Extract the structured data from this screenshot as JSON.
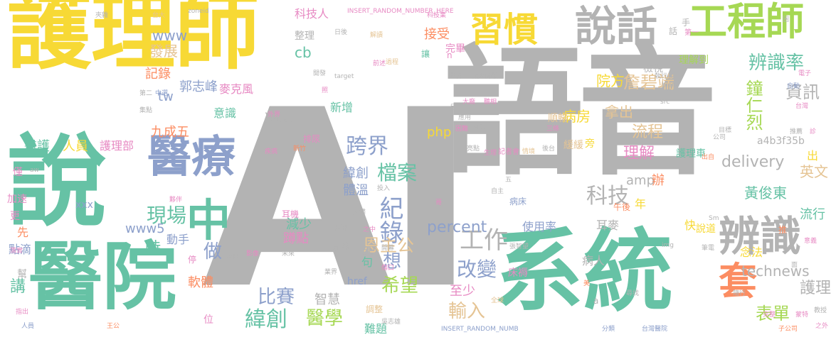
{
  "colors": {
    "yellow": "#f7d935",
    "gray": "#b3b3b3",
    "green": "#66c2a5",
    "blue": "#8da0cb",
    "orange": "#fc8d62",
    "pink": "#e78ac3",
    "lime": "#a6d854",
    "tan": "#e5c494"
  },
  "words": [
    {
      "text": "護理師",
      "color": "yellow"
    },
    {
      "text": "語音",
      "color": "gray"
    },
    {
      "text": "AI",
      "color": "gray"
    },
    {
      "text": "說",
      "color": "green"
    },
    {
      "text": "醫院",
      "color": "green"
    },
    {
      "text": "系統",
      "color": "green"
    },
    {
      "text": "醫療",
      "color": "blue"
    },
    {
      "text": "說話",
      "color": "gray"
    },
    {
      "text": "習慣",
      "color": "yellow"
    },
    {
      "text": "工程師",
      "color": "lime"
    },
    {
      "text": "辨識",
      "color": "gray"
    },
    {
      "text": "中",
      "color": "green"
    },
    {
      "text": "套",
      "color": "orange"
    },
    {
      "text": "辨識率",
      "color": "green"
    },
    {
      "text": "詹碧端",
      "color": "tan"
    },
    {
      "text": "鐘仁烈",
      "color": "lime"
    },
    {
      "text": "跨界",
      "color": "blue"
    },
    {
      "text": "科技",
      "color": "gray"
    },
    {
      "text": "紀錄",
      "color": "blue"
    },
    {
      "text": "檔案",
      "color": "green"
    },
    {
      "text": "工作",
      "color": "gray"
    },
    {
      "text": "改變",
      "color": "blue"
    },
    {
      "text": "緯創",
      "color": "green"
    },
    {
      "text": "醫學",
      "color": "lime"
    },
    {
      "text": "比賽",
      "color": "blue"
    },
    {
      "text": "希望",
      "color": "lime"
    },
    {
      "text": "輸入",
      "color": "tan"
    },
    {
      "text": "護理",
      "color": "gray"
    },
    {
      "text": "表單",
      "color": "lime"
    },
    {
      "text": "恩主公",
      "color": "tan"
    },
    {
      "text": "現場",
      "color": "green"
    },
    {
      "text": "做",
      "color": "blue"
    },
    {
      "text": "想",
      "color": "blue"
    },
    {
      "text": "percent",
      "color": "blue"
    },
    {
      "text": "使用率",
      "color": "blue"
    },
    {
      "text": "delivery",
      "color": "gray"
    },
    {
      "text": "technews",
      "color": "gray"
    },
    {
      "text": "資訊",
      "color": "gray"
    },
    {
      "text": "病患",
      "color": "gray"
    },
    {
      "text": "院方",
      "color": "yellow"
    },
    {
      "text": "流程",
      "color": "tan"
    },
    {
      "text": "理解",
      "color": "pink"
    },
    {
      "text": "拿出",
      "color": "tan"
    },
    {
      "text": "病房",
      "color": "yellow"
    },
    {
      "text": "順暢",
      "color": "tan"
    },
    {
      "text": "黃俊東",
      "color": "green"
    },
    {
      "text": "英文",
      "color": "tan"
    },
    {
      "text": "流行",
      "color": "green"
    },
    {
      "text": "記錄",
      "color": "orange"
    },
    {
      "text": "郭志峰",
      "color": "blue"
    },
    {
      "text": "麥克風",
      "color": "pink"
    },
    {
      "text": "發展",
      "color": "tan"
    },
    {
      "text": "www",
      "color": "blue"
    },
    {
      "text": "cb",
      "color": "green"
    },
    {
      "text": "tw",
      "color": "blue"
    },
    {
      "text": "九成五",
      "color": "orange"
    },
    {
      "text": "醫護",
      "color": "green"
    },
    {
      "text": "人員",
      "color": "yellow"
    },
    {
      "text": "護理部",
      "color": "pink"
    },
    {
      "text": "科技人",
      "color": "pink"
    },
    {
      "text": "整理",
      "color": "gray"
    },
    {
      "text": "接受",
      "color": "orange"
    },
    {
      "text": "完畢",
      "color": "pink"
    },
    {
      "text": "體溫",
      "color": "blue"
    },
    {
      "text": "緯創",
      "color": "blue"
    },
    {
      "text": "減少",
      "color": "green"
    },
    {
      "text": "蹲點",
      "color": "pink"
    },
    {
      "text": "時",
      "color": "green"
    },
    {
      "text": "動手",
      "color": "blue"
    },
    {
      "text": "軟體",
      "color": "orange"
    },
    {
      "text": "智慧",
      "color": "gray"
    },
    {
      "text": "至少",
      "color": "pink"
    },
    {
      "text": "加速",
      "color": "pink"
    },
    {
      "text": "講",
      "color": "green"
    },
    {
      "text": "點滴",
      "color": "blue"
    },
    {
      "text": "www5",
      "color": "blue"
    },
    {
      "text": "php",
      "color": "yellow"
    },
    {
      "text": "amp",
      "color": "gray"
    },
    {
      "text": "辦",
      "color": "orange"
    },
    {
      "text": "年",
      "color": "yellow"
    },
    {
      "text": "耳麥",
      "color": "gray"
    },
    {
      "text": "病人",
      "color": "gray"
    },
    {
      "text": "念法",
      "color": "yellow"
    },
    {
      "text": "新增",
      "color": "green"
    },
    {
      "text": "理解到",
      "color": "lime"
    },
    {
      "text": "檢視",
      "color": "gray"
    },
    {
      "text": "護理車",
      "color": "green"
    },
    {
      "text": "a4b3f35b",
      "color": "gray"
    },
    {
      "text": "出",
      "color": "yellow"
    },
    {
      "text": "快",
      "color": "yellow"
    },
    {
      "text": "說道",
      "color": "yellow"
    },
    {
      "text": "INSERT_RANDOM_NUMBER_HERE",
      "color": "pink"
    },
    {
      "text": "INSERT_RANDOM_NUMB",
      "color": "blue"
    },
    {
      "text": "zoneid",
      "color": "gray"
    },
    {
      "text": "台大",
      "color": "tan"
    },
    {
      "text": "夾雜",
      "color": "gray"
    },
    {
      "text": "日後",
      "color": "gray"
    },
    {
      "text": "解讀",
      "color": "tan"
    },
    {
      "text": "讓",
      "color": "green"
    },
    {
      "text": "手",
      "color": "gray"
    },
    {
      "text": "第一",
      "color": "pink"
    },
    {
      "text": "話",
      "color": "gray"
    },
    {
      "text": "第二",
      "color": "gray"
    },
    {
      "text": "意識",
      "color": "green"
    },
    {
      "text": "xxx",
      "color": "blue"
    },
    {
      "text": "先",
      "color": "orange"
    },
    {
      "text": "更",
      "color": "pink"
    },
    {
      "text": "僅",
      "color": "pink"
    },
    {
      "text": "幫",
      "color": "gray"
    },
    {
      "text": "位",
      "color": "pink"
    },
    {
      "text": "停",
      "color": "pink"
    },
    {
      "text": "href",
      "color": "blue"
    },
    {
      "text": "ck",
      "color": "gray"
    },
    {
      "text": "句",
      "color": "green"
    },
    {
      "text": "排尿",
      "color": "pink"
    },
    {
      "text": "調整",
      "color": "tan"
    },
    {
      "text": "難題",
      "color": "green"
    },
    {
      "text": "耳機",
      "color": "pink"
    },
    {
      "text": "尿袋",
      "color": "gray"
    },
    {
      "text": "午後",
      "color": "orange"
    },
    {
      "text": "床褥",
      "color": "pink"
    },
    {
      "text": "緩緩",
      "color": "tan"
    },
    {
      "text": "病床",
      "color": "blue"
    },
    {
      "text": "旁",
      "color": "yellow"
    },
    {
      "text": "台灣醫院",
      "color": "blue"
    },
    {
      "text": "子公司",
      "color": "orange"
    },
    {
      "text": "target",
      "color": "gray"
    },
    {
      "text": "_blank",
      "color": "gray"
    },
    {
      "text": "src",
      "color": "gray"
    },
    {
      "text": "img",
      "color": "gray"
    },
    {
      "text": "人員",
      "color": "blue"
    },
    {
      "text": "全球",
      "color": "tan"
    },
    {
      "text": "記者會",
      "color": "pink"
    },
    {
      "text": "情境",
      "color": "tan"
    },
    {
      "text": "後台",
      "color": "gray"
    },
    {
      "text": "三條",
      "color": "pink"
    },
    {
      "text": "護理師版",
      "color": "gray"
    },
    {
      "text": "前述",
      "color": "pink"
    },
    {
      "text": "開發",
      "color": "gray"
    },
    {
      "text": "世界",
      "color": "gray"
    },
    {
      "text": "國際",
      "color": "gray"
    },
    {
      "text": "亮點",
      "color": "gray"
    },
    {
      "text": "生理",
      "color": "pink"
    },
    {
      "text": "吳志雄",
      "color": "gray"
    },
    {
      "text": "推",
      "color": "orange"
    },
    {
      "text": "推薦",
      "color": "gray"
    },
    {
      "text": "診",
      "color": "pink"
    },
    {
      "text": "自動",
      "color": "blue"
    },
    {
      "text": "電子",
      "color": "pink"
    },
    {
      "text": "台灣",
      "color": "pink"
    },
    {
      "text": "公司",
      "color": "gray"
    },
    {
      "text": "執行長",
      "color": "gray"
    },
    {
      "text": "大廠",
      "color": "pink"
    },
    {
      "text": "聽相",
      "color": "pink"
    },
    {
      "text": "新竹",
      "color": "orange"
    },
    {
      "text": "大樓",
      "color": "gray"
    },
    {
      "text": "投入",
      "color": "gray"
    },
    {
      "text": "未來",
      "color": "gray"
    },
    {
      "text": "溝通",
      "color": "gray"
    },
    {
      "text": "之中",
      "color": "pink"
    },
    {
      "text": "開幕",
      "color": "gray"
    },
    {
      "text": "張智望",
      "color": "gray"
    },
    {
      "text": "傷口",
      "color": "pink"
    },
    {
      "text": "蒙特",
      "color": "pink"
    },
    {
      "text": "尋找",
      "color": "gray"
    },
    {
      "text": "分類",
      "color": "blue"
    },
    {
      "text": "之外",
      "color": "pink"
    },
    {
      "text": "教授",
      "color": "gray"
    },
    {
      "text": "筆電",
      "color": "gray"
    },
    {
      "text": "王公",
      "color": "orange"
    },
    {
      "text": "指出",
      "color": "pink"
    },
    {
      "text": "落實",
      "color": "pink"
    },
    {
      "text": "aw",
      "color": "gray"
    },
    {
      "text": "中選",
      "color": "blue"
    },
    {
      "text": "集點",
      "color": "gray"
    },
    {
      "text": "疾病",
      "color": "pink"
    },
    {
      "text": "影像",
      "color": "pink"
    },
    {
      "text": "源自",
      "color": "gray"
    },
    {
      "text": "夥伴",
      "color": "pink"
    },
    {
      "text": "外界",
      "color": "pink"
    },
    {
      "text": "困",
      "color": "gray"
    },
    {
      "text": "照",
      "color": "pink"
    },
    {
      "text": "月",
      "color": "gray"
    },
    {
      "text": "五",
      "color": "gray"
    },
    {
      "text": "a",
      "color": "gray"
    },
    {
      "text": "n",
      "color": "pink"
    },
    {
      "text": "美",
      "color": "orange"
    },
    {
      "text": "出自",
      "color": "orange"
    },
    {
      "text": "困難",
      "color": "pink"
    },
    {
      "text": "科技業",
      "color": "pink"
    },
    {
      "text": "業界",
      "color": "gray"
    },
    {
      "text": "意義",
      "color": "pink"
    },
    {
      "text": "隨行",
      "color": "gray"
    },
    {
      "text": "目標",
      "color": "pink"
    },
    {
      "text": "過程",
      "color": "gray"
    },
    {
      "text": "完整",
      "color": "tan"
    },
    {
      "text": "自主",
      "color": "pink"
    },
    {
      "text": "應用",
      "color": "gray"
    },
    {
      "text": "Sm",
      "color": "gray"
    },
    {
      "text": "哥",
      "color": "gray"
    },
    {
      "text": "面",
      "color": "pink"
    },
    {
      "text": "早",
      "color": "gray"
    }
  ]
}
